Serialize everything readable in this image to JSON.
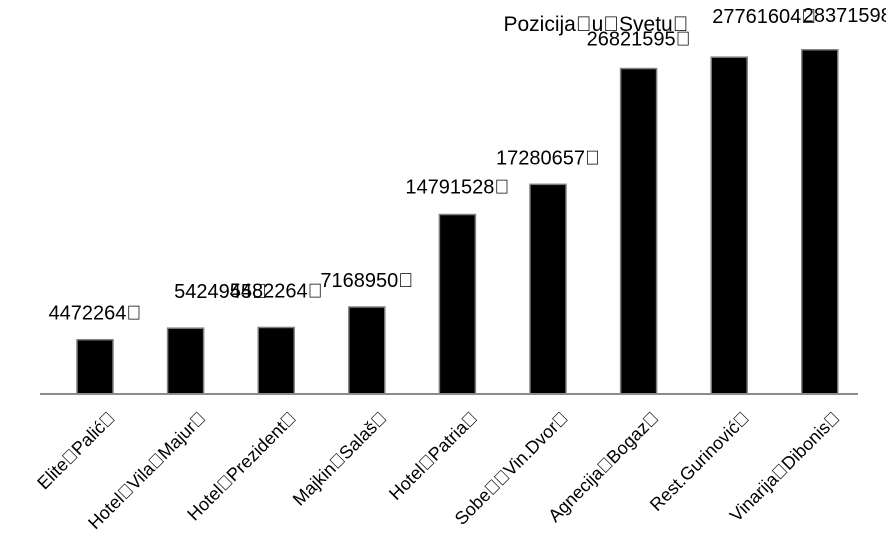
{
  "chart_data": {
    "type": "bar",
    "title": "Pozicija\u0000u\u0000Svetu\u0000",
    "categories": [
      "Elite\u0000Palić\u0000",
      "Hotel\u0000Vila\u0000Majur\u0000",
      "Hotel\u0000Prezident\u0000",
      "Majkin\u0000Salaš\u0000",
      "Hotel\u0000Patria\u0000",
      "Sobe\u0000\u0000Vin.Dvor\u0000",
      "Agnecija\u0000Bogaz\u0000",
      "Rest.Gurinović\u0000",
      "Vinarija\u0000Dibonis\u0000"
    ],
    "values": [
      4472264,
      5424945,
      5482264,
      7168950,
      14791528,
      17280657,
      26821595,
      27761604,
      28371598
    ],
    "data_labels": [
      "4472264\u0000",
      "5424945\u0000",
      "5482264\u0000",
      "7168950\u0000",
      "14791528\u0000",
      "17280657\u0000",
      "26821595\u0000",
      "27761604\u0000",
      "28371598\u0000"
    ],
    "ylim": [
      0,
      30000000
    ],
    "grid": false,
    "legend": "none",
    "colors": {
      "bar": "#000000",
      "bar_edge": "#7f7f7f",
      "axis": "#8c8c8c"
    }
  }
}
